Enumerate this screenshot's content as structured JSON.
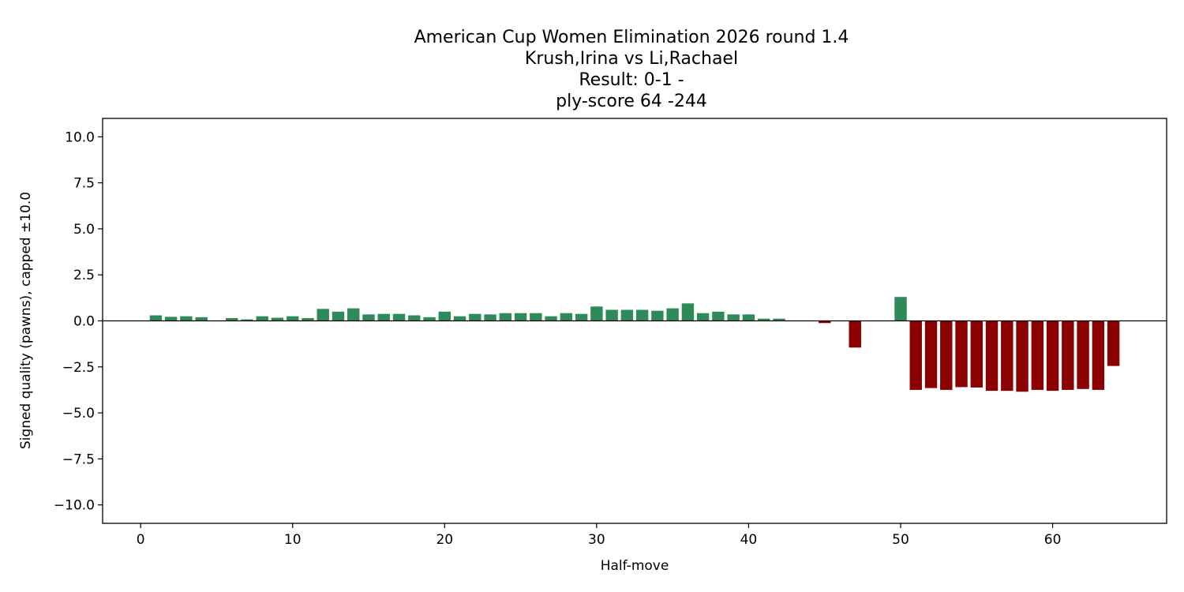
{
  "chart_data": {
    "type": "bar",
    "title_lines": [
      "American Cup Women Elimination 2026  round 1.4",
      "Krush,Irina vs Li,Rachael",
      "Result: 0-1 -",
      "ply-score 64 -244"
    ],
    "xlabel": "Half-move",
    "ylabel": "Signed quality (pawns), capped ±10.0",
    "xlim": [
      -2.5,
      67.5
    ],
    "ylim": [
      -11,
      11
    ],
    "xticks": [
      0,
      10,
      20,
      30,
      40,
      50,
      60
    ],
    "xtick_labels": [
      "0",
      "10",
      "20",
      "30",
      "40",
      "50",
      "60"
    ],
    "yticks": [
      10,
      7.5,
      5,
      2.5,
      0,
      -2.5,
      -5,
      -7.5,
      -10
    ],
    "ytick_labels": [
      "10.0",
      "7.5",
      "5.0",
      "2.5",
      "0.0",
      "−2.5",
      "−5.0",
      "−7.5",
      "−10.0"
    ],
    "grid": false,
    "positive_color": "#2e8b57",
    "negative_color": "#8b0000",
    "zero_line": true,
    "x": [
      1,
      2,
      3,
      4,
      5,
      6,
      7,
      8,
      9,
      10,
      11,
      12,
      13,
      14,
      15,
      16,
      17,
      18,
      19,
      20,
      21,
      22,
      23,
      24,
      25,
      26,
      27,
      28,
      29,
      30,
      31,
      32,
      33,
      34,
      35,
      36,
      37,
      38,
      39,
      40,
      41,
      42,
      43,
      44,
      45,
      46,
      47,
      48,
      49,
      50,
      51,
      52,
      53,
      54,
      55,
      56,
      57,
      58,
      59,
      60,
      61,
      62,
      63,
      64
    ],
    "values": [
      0.3,
      0.22,
      0.25,
      0.2,
      0.0,
      0.15,
      0.08,
      0.25,
      0.17,
      0.25,
      0.15,
      0.65,
      0.5,
      0.68,
      0.35,
      0.38,
      0.38,
      0.3,
      0.2,
      0.5,
      0.25,
      0.38,
      0.35,
      0.42,
      0.42,
      0.42,
      0.25,
      0.42,
      0.38,
      0.78,
      0.6,
      0.6,
      0.6,
      0.55,
      0.68,
      0.95,
      0.42,
      0.5,
      0.35,
      0.35,
      0.12,
      0.12,
      0.0,
      0.0,
      -0.12,
      0.0,
      -1.45,
      0.0,
      0.0,
      1.3,
      -3.75,
      -3.65,
      -3.75,
      -3.6,
      -3.62,
      -3.8,
      -3.8,
      -3.85,
      -3.75,
      -3.8,
      -3.75,
      -3.7,
      -3.75,
      -2.45
    ]
  }
}
